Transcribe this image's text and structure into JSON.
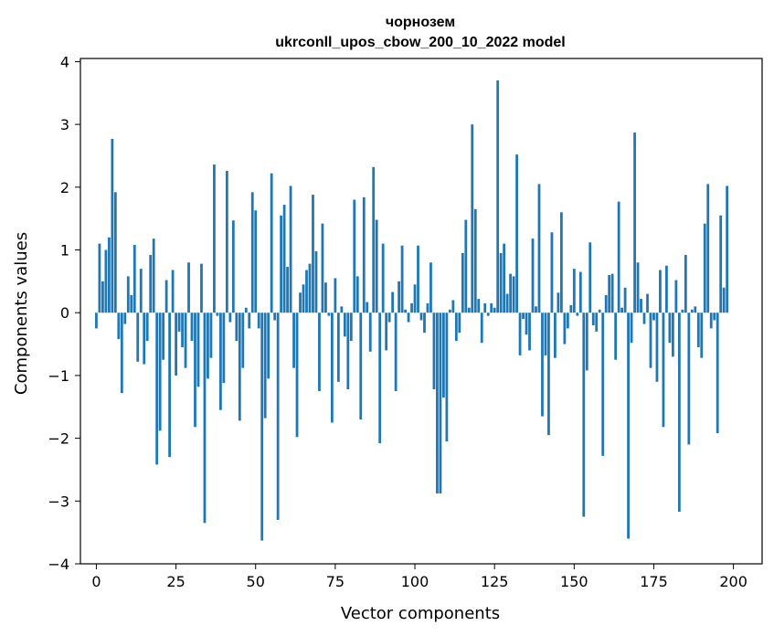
{
  "chart_data": {
    "type": "bar",
    "title": "чорнозем",
    "subtitle": "ukrconll_upos_cbow_200_10_2022 model",
    "xlabel": "Vector components",
    "ylabel": "Components values",
    "xlim": [
      -5,
      209
    ],
    "ylim": [
      -4,
      4.05
    ],
    "xticks": [
      0,
      25,
      50,
      75,
      100,
      125,
      150,
      175,
      200
    ],
    "xtick_labels": [
      "0",
      "25",
      "50",
      "75",
      "100",
      "125",
      "150",
      "175",
      "200"
    ],
    "yticks": [
      -4,
      -3,
      -2,
      -1,
      0,
      1,
      2,
      3,
      4
    ],
    "ytick_labels": [
      "−4",
      "−3",
      "−2",
      "−1",
      "0",
      "1",
      "2",
      "3",
      "4"
    ],
    "bar_color": "#1f77b4",
    "grid": false,
    "values": [
      -0.25,
      1.1,
      0.5,
      1.0,
      1.2,
      2.77,
      1.92,
      -0.42,
      -1.28,
      -0.18,
      0.58,
      0.28,
      1.08,
      -0.78,
      0.7,
      -0.82,
      -0.45,
      0.92,
      1.18,
      -2.42,
      -1.88,
      -0.75,
      0.52,
      -2.3,
      0.68,
      -1.0,
      -0.3,
      -0.55,
      -0.88,
      0.8,
      -0.45,
      -1.82,
      -1.18,
      0.78,
      -3.35,
      -1.05,
      -0.72,
      2.36,
      -0.05,
      -1.55,
      -1.12,
      2.26,
      -0.15,
      1.47,
      -0.45,
      -1.72,
      -0.88,
      0.08,
      -0.25,
      1.92,
      1.63,
      -0.25,
      -3.63,
      -1.68,
      -1.05,
      2.22,
      -0.12,
      -3.3,
      1.55,
      1.72,
      0.73,
      2.02,
      -0.88,
      -1.98,
      0.32,
      0.45,
      0.68,
      0.78,
      1.88,
      0.98,
      -1.25,
      1.42,
      0.48,
      -0.05,
      -1.75,
      0.55,
      -1.1,
      0.1,
      -0.38,
      -1.22,
      -0.45,
      1.8,
      0.58,
      -1.7,
      1.84,
      0.17,
      -0.62,
      2.32,
      1.48,
      -2.08,
      1.1,
      -0.6,
      -0.15,
      0.33,
      -1.25,
      0.5,
      1.07,
      0.05,
      -0.15,
      0.15,
      0.45,
      1.07,
      -0.12,
      -0.32,
      0.15,
      0.8,
      -1.22,
      -2.88,
      -2.88,
      -1.35,
      -2.05,
      0.05,
      0.2,
      -0.45,
      -0.32,
      0.95,
      1.48,
      0.08,
      3.0,
      1.65,
      0.22,
      -0.48,
      0.15,
      -0.05,
      0.15,
      0.08,
      3.7,
      0.95,
      1.1,
      0.3,
      0.62,
      0.58,
      2.52,
      -0.68,
      -0.1,
      -0.35,
      -0.6,
      1.18,
      0.1,
      2.05,
      -1.65,
      -0.68,
      -1.95,
      1.28,
      -0.72,
      0.32,
      1.6,
      -0.5,
      -0.25,
      0.12,
      0.7,
      -0.05,
      0.65,
      -3.25,
      -0.92,
      1.12,
      -0.2,
      -0.3,
      0.05,
      -2.28,
      0.28,
      0.6,
      0.62,
      -0.75,
      1.77,
      0.08,
      0.4,
      -3.6,
      -0.48,
      2.87,
      0.8,
      0.22,
      -0.18,
      0.3,
      -0.88,
      -0.12,
      -1.1,
      0.68,
      -1.82,
      0.75,
      -0.48,
      -0.7,
      0.52,
      -3.17,
      0.05,
      0.92,
      -2.1,
      0.05,
      0.1,
      -0.55,
      -0.72,
      1.42,
      2.05,
      -0.25,
      -0.12,
      -1.92,
      1.55,
      0.4,
      2.02
    ]
  }
}
